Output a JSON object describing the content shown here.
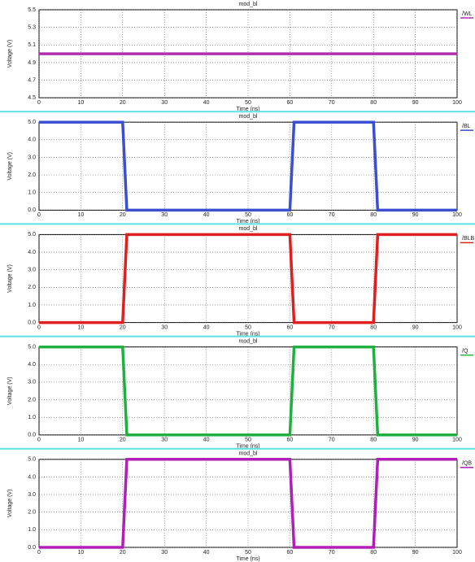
{
  "chart_data": [
    {
      "type": "line",
      "title": "mod_bl",
      "xlabel": "Time (ns)",
      "ylabel": "Voltage (V)",
      "x": [
        0,
        20,
        21,
        60,
        61,
        80,
        81,
        100
      ],
      "series": [
        {
          "name": "/WL",
          "color": "#b030b0",
          "values": [
            5,
            5,
            5,
            5,
            5,
            5,
            5,
            5
          ]
        }
      ],
      "xlim": [
        0,
        100
      ],
      "xticks": [
        0,
        10,
        20,
        30,
        40,
        50,
        60,
        70,
        80,
        90,
        100
      ],
      "ylim": [
        4.5,
        5.5
      ],
      "yticks": [
        {
          "value": 4.5,
          "label": "4.5"
        },
        {
          "value": 4.7,
          "label": "4.7"
        },
        {
          "value": 4.9,
          "label": "4.9"
        },
        {
          "value": 5.1,
          "label": "5.1"
        },
        {
          "value": 5.3,
          "label": "5.3"
        },
        {
          "value": 5.5,
          "label": "5.5"
        }
      ],
      "grid": true
    },
    {
      "type": "line",
      "title": "mod_bl",
      "xlabel": "Time (ns)",
      "ylabel": "Voltage (V)",
      "x": [
        0,
        20,
        21,
        60,
        61,
        80,
        81,
        100
      ],
      "series": [
        {
          "name": "/BL",
          "color": "#3c4fd0",
          "values": [
            5,
            5,
            0,
            0,
            5,
            5,
            0,
            0
          ]
        }
      ],
      "xlim": [
        0,
        100
      ],
      "xticks": [
        0,
        10,
        20,
        30,
        40,
        50,
        60,
        70,
        80,
        90,
        100
      ],
      "ylim": [
        0,
        5
      ],
      "yticks": [
        {
          "value": 0,
          "label": "0.0"
        },
        {
          "value": 1,
          "label": "1.0"
        },
        {
          "value": 2,
          "label": "2.0"
        },
        {
          "value": 3,
          "label": "3.0"
        },
        {
          "value": 4,
          "label": "4.0"
        },
        {
          "value": 5,
          "label": "5.0"
        }
      ],
      "grid": true
    },
    {
      "type": "line",
      "title": "mod_bl",
      "xlabel": "Time (ns)",
      "ylabel": "Voltage (V)",
      "x": [
        0,
        20,
        21,
        60,
        61,
        80,
        81,
        100
      ],
      "series": [
        {
          "name": "/BLB",
          "color": "#e02020",
          "values": [
            0,
            0,
            5,
            5,
            0,
            0,
            5,
            5
          ]
        }
      ],
      "xlim": [
        0,
        100
      ],
      "xticks": [
        0,
        10,
        20,
        30,
        40,
        50,
        60,
        70,
        80,
        90,
        100
      ],
      "ylim": [
        0,
        5
      ],
      "yticks": [
        {
          "value": 0,
          "label": "0.0"
        },
        {
          "value": 1,
          "label": "1.0"
        },
        {
          "value": 2,
          "label": "2.0"
        },
        {
          "value": 3,
          "label": "3.0"
        },
        {
          "value": 4,
          "label": "4.0"
        },
        {
          "value": 5,
          "label": "5.0"
        }
      ],
      "grid": true
    },
    {
      "type": "line",
      "title": "mod_bl",
      "xlabel": "Time (ns)",
      "ylabel": "Voltage (V)",
      "x": [
        0,
        20,
        21,
        60,
        61,
        80,
        81,
        100
      ],
      "series": [
        {
          "name": "/Q",
          "color": "#20b040",
          "values": [
            5,
            5,
            0,
            0,
            5,
            5,
            0,
            0
          ]
        }
      ],
      "xlim": [
        0,
        100
      ],
      "xticks": [
        0,
        10,
        20,
        30,
        40,
        50,
        60,
        70,
        80,
        90,
        100
      ],
      "ylim": [
        0,
        5
      ],
      "yticks": [
        {
          "value": 0,
          "label": "0.0"
        },
        {
          "value": 1,
          "label": "1.0"
        },
        {
          "value": 2,
          "label": "2.0"
        },
        {
          "value": 3,
          "label": "3.0"
        },
        {
          "value": 4,
          "label": "4.0"
        },
        {
          "value": 5,
          "label": "5.0"
        }
      ],
      "grid": true
    },
    {
      "type": "line",
      "title": "mod_bl",
      "xlabel": "Time (ns)",
      "ylabel": "Voltage (V)",
      "x": [
        0,
        20,
        21,
        60,
        61,
        80,
        81,
        100
      ],
      "series": [
        {
          "name": "/QB",
          "color": "#b020b8",
          "values": [
            0,
            0,
            5,
            5,
            0,
            0,
            5,
            5
          ]
        }
      ],
      "xlim": [
        0,
        100
      ],
      "xticks": [
        0,
        10,
        20,
        30,
        40,
        50,
        60,
        70,
        80,
        90,
        100
      ],
      "ylim": [
        0,
        5
      ],
      "yticks": [
        {
          "value": 0,
          "label": "0.0"
        },
        {
          "value": 1,
          "label": "1.0"
        },
        {
          "value": 2,
          "label": "2.0"
        },
        {
          "value": 3,
          "label": "3.0"
        },
        {
          "value": 4,
          "label": "4.0"
        },
        {
          "value": 5,
          "label": "5.0"
        }
      ],
      "grid": true
    }
  ]
}
